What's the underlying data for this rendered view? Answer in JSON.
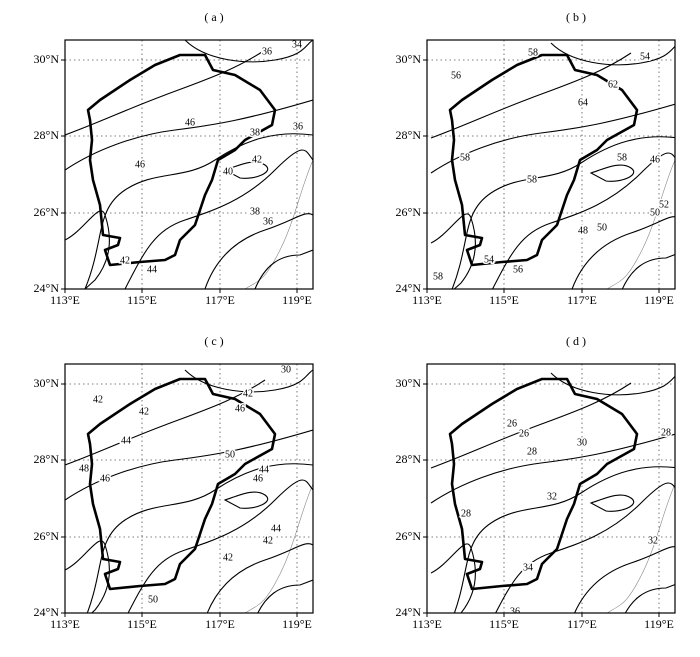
{
  "axes": {
    "x_ticks": [
      "113°E",
      "115°E",
      "117°E",
      "119°E"
    ],
    "y_ticks": [
      "30°N",
      "28°N",
      "26°N",
      "24°N"
    ]
  },
  "panels": [
    {
      "label": "( a )",
      "contour_labels": [
        36,
        34,
        46,
        38,
        36,
        46,
        42,
        40,
        38,
        36,
        42,
        44
      ]
    },
    {
      "label": "( b )",
      "contour_labels": [
        58,
        54,
        56,
        62,
        64,
        58,
        58,
        46,
        58,
        52,
        50,
        48,
        50,
        54,
        56,
        58
      ]
    },
    {
      "label": "( c )",
      "contour_labels": [
        42,
        42,
        42,
        46,
        30,
        44,
        48,
        50,
        44,
        46,
        46,
        44,
        42,
        42,
        50
      ]
    },
    {
      "label": "( d )",
      "contour_labels": [
        28,
        26,
        26,
        28,
        30,
        32,
        28,
        32,
        34,
        36
      ]
    }
  ]
}
